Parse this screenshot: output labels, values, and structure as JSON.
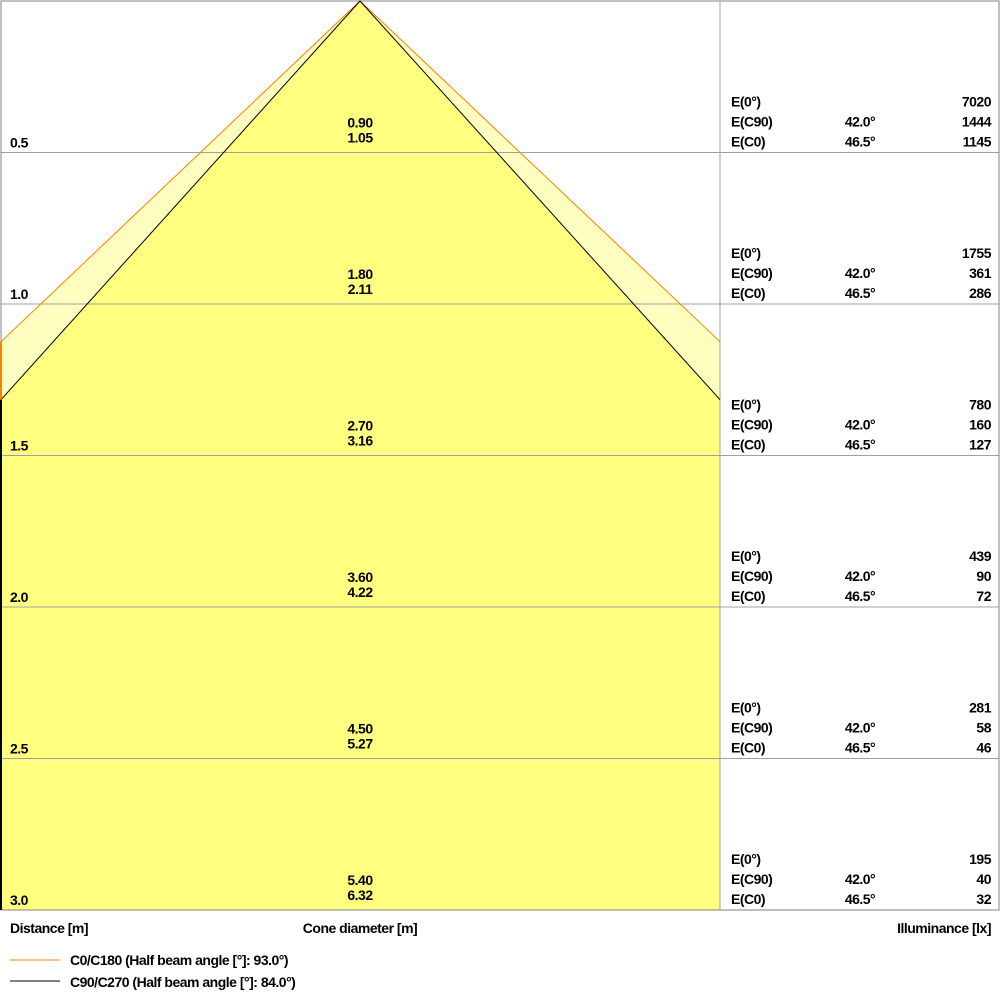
{
  "chart_data": {
    "type": "cone-diagram",
    "xlabel": "Cone diameter [m]",
    "ylabel": "Distance [m]",
    "right_label": "Illuminance [lx]",
    "fill_colors": {
      "inner": "#ffff80",
      "outer": "#ffffc0"
    },
    "series": [
      {
        "name": "C0/C180 (Half beam angle [°]: 93.0°)",
        "color": "#ff8000",
        "half_beam_angle": 93.0
      },
      {
        "name": "C90/C270 (Half beam angle [°]: 84.0°)",
        "color": "#000000",
        "half_beam_angle": 84.0
      }
    ],
    "rows": [
      {
        "distance": "0.5",
        "d1": "0.90",
        "d2": "1.05",
        "e0": "7020",
        "ec90_angle": "42.0°",
        "ec90": "1444",
        "ec0_angle": "46.5°",
        "ec0": "1145"
      },
      {
        "distance": "1.0",
        "d1": "1.80",
        "d2": "2.11",
        "e0": "1755",
        "ec90_angle": "42.0°",
        "ec90": "361",
        "ec0_angle": "46.5°",
        "ec0": "286"
      },
      {
        "distance": "1.5",
        "d1": "2.70",
        "d2": "3.16",
        "e0": "780",
        "ec90_angle": "42.0°",
        "ec90": "160",
        "ec0_angle": "46.5°",
        "ec0": "127"
      },
      {
        "distance": "2.0",
        "d1": "3.60",
        "d2": "4.22",
        "e0": "439",
        "ec90_angle": "42.0°",
        "ec90": "90",
        "ec0_angle": "46.5°",
        "ec0": "72"
      },
      {
        "distance": "2.5",
        "d1": "4.50",
        "d2": "5.27",
        "e0": "281",
        "ec90_angle": "42.0°",
        "ec90": "58",
        "ec0_angle": "46.5°",
        "ec0": "46"
      },
      {
        "distance": "3.0",
        "d1": "5.40",
        "d2": "6.32",
        "e0": "195",
        "ec90_angle": "42.0°",
        "ec90": "40",
        "ec0_angle": "46.5°",
        "ec0": "32"
      }
    ],
    "labels": {
      "e0": "E(0°)",
      "ec90": "E(C90)",
      "ec0": "E(C0)"
    }
  }
}
